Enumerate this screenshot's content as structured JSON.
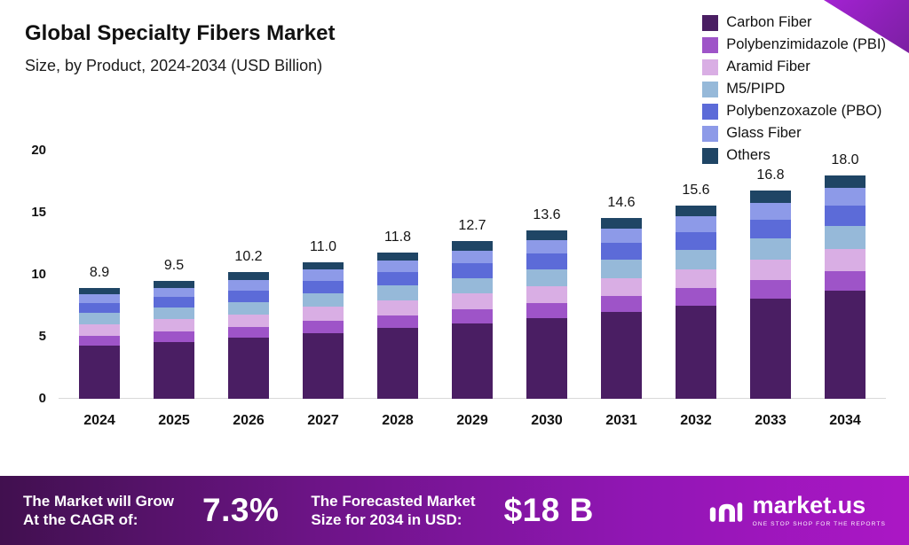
{
  "header": {
    "title": "Global Specialty Fibers Market",
    "subtitle": "Size, by Product, 2024-2034 (USD Billion)"
  },
  "chart_data": {
    "type": "bar",
    "stacked": true,
    "title": "Global Specialty Fibers Market Size, by Product, 2024-2034 (USD Billion)",
    "xlabel": "",
    "ylabel": "USD Billion",
    "ylim": [
      0,
      20
    ],
    "yticks": [
      0,
      5,
      10,
      15,
      20
    ],
    "grid": false,
    "legend_position": "top-right",
    "categories": [
      "2024",
      "2025",
      "2026",
      "2027",
      "2028",
      "2029",
      "2030",
      "2031",
      "2032",
      "2033",
      "2034"
    ],
    "totals": [
      "8.9",
      "9.5",
      "10.2",
      "11.0",
      "11.8",
      "12.7",
      "13.6",
      "14.6",
      "15.6",
      "16.8",
      "18.0"
    ],
    "series": [
      {
        "name": "Carbon Fiber",
        "color": "#4a1e63",
        "values": [
          4.3,
          4.6,
          4.9,
          5.3,
          5.7,
          6.1,
          6.5,
          7.0,
          7.5,
          8.1,
          8.7
        ]
      },
      {
        "name": "Polybenzimidazole (PBI)",
        "color": "#9e54c8",
        "values": [
          0.8,
          0.85,
          0.9,
          1.0,
          1.05,
          1.15,
          1.25,
          1.3,
          1.4,
          1.5,
          1.6
        ]
      },
      {
        "name": "Aramid Fiber",
        "color": "#d9aee4",
        "values": [
          0.9,
          0.95,
          1.0,
          1.1,
          1.2,
          1.25,
          1.35,
          1.45,
          1.55,
          1.65,
          1.8
        ]
      },
      {
        "name": "M5/PIPD",
        "color": "#96b9d9",
        "values": [
          0.9,
          0.95,
          1.0,
          1.1,
          1.2,
          1.25,
          1.35,
          1.45,
          1.55,
          1.65,
          1.8
        ]
      },
      {
        "name": "Polybenzoxazole (PBO)",
        "color": "#5c6bd8",
        "values": [
          0.8,
          0.85,
          0.9,
          1.0,
          1.05,
          1.15,
          1.25,
          1.35,
          1.45,
          1.55,
          1.65
        ]
      },
      {
        "name": "Glass Fiber",
        "color": "#8d9ae8",
        "values": [
          0.7,
          0.75,
          0.85,
          0.9,
          0.95,
          1.0,
          1.1,
          1.2,
          1.25,
          1.35,
          1.45
        ]
      },
      {
        "name": "Others",
        "color": "#1f4565",
        "values": [
          0.5,
          0.55,
          0.65,
          0.6,
          0.65,
          0.8,
          0.8,
          0.85,
          0.9,
          1.0,
          1.0
        ]
      }
    ]
  },
  "footer": {
    "growth_label_line1": "The Market will Grow",
    "growth_label_line2": "At the CAGR of:",
    "cagr_value": "7.3%",
    "forecast_label_line1": "The Forecasted Market",
    "forecast_label_line2": "Size for 2034 in USD:",
    "forecast_value": "$18 B",
    "brand_name": "market.us",
    "brand_tagline": "ONE STOP SHOP FOR THE REPORTS"
  },
  "colors": {
    "corner_accent": "#8e2ac8",
    "footer_gradient_start": "#41104f",
    "footer_gradient_end": "#ab17c5"
  }
}
